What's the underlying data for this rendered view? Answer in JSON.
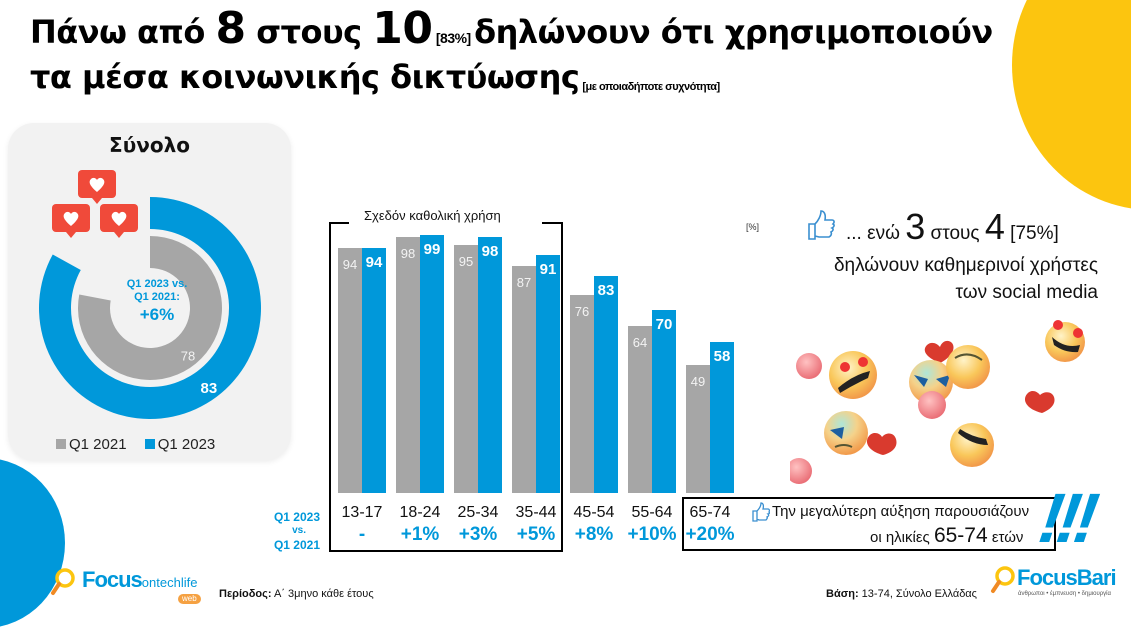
{
  "header": {
    "line1_part1": "Πάνω από ",
    "line1_big1": "8",
    "line1_part2": " στους ",
    "line1_big2": "10",
    "line1_pct": " [83%] ",
    "line1_part3": "δηλώνουν ότι χρησιμοποιούν",
    "line2_main": "τα μέσα κοινωνικής δικτύωσης",
    "line2_note": "[με οποιαδήποτε συχνότητα]"
  },
  "total_panel": {
    "title": "Σύνολο",
    "center_line1": "Q1 2023 vs.",
    "center_line2": "Q1 2021:",
    "center_change": "+6%",
    "legend": [
      {
        "label": "Q1 2021",
        "color": "#A6A6A6"
      },
      {
        "label": "Q1 2023",
        "color": "#0098DA"
      }
    ]
  },
  "bracket_label": "Σχεδόν καθολική χρήση",
  "unit_note": "[%]",
  "axis_side_label": [
    "Q1 2023",
    "vs.",
    "Q1 2021"
  ],
  "daily_note": {
    "part1": "... ενώ ",
    "big1": "3",
    "part2": " στους ",
    "big2": "4",
    "pct": " [75%]",
    "line2": "δηλώνουν καθημερινοί χρήστες",
    "line3": "των social media"
  },
  "highlight_note": {
    "line1": "Την μεγαλύτερη αύξηση παρουσιάζουν",
    "line2_pre": "οι ηλικίες ",
    "line2_big": "65-74",
    "line2_post": " ετών",
    "exclaim": "!!!"
  },
  "footer": {
    "period_label": "Περίοδος:",
    "period_value": " Α΄ 3μηνο κάθε έτους",
    "base_label": "Βάση:",
    "base_value": " 13-74, Σύνολο Ελλάδας",
    "logo_left_main": "Focus",
    "logo_left_sub": "ontechlife",
    "logo_left_tag": "web",
    "logo_right_main": "FocusBari",
    "logo_right_tag": "άνθρωποι • έμπνευση • δημιουργία"
  },
  "colors": {
    "q2021": "#A6A6A6",
    "q2023": "#0098DA",
    "yellow": "#FCC50F",
    "heart_red": "#F04A3A"
  },
  "chart_data": [
    {
      "type": "pie",
      "title": "Σύνολο",
      "subtype": "donut",
      "series": [
        {
          "name": "Q1 2021",
          "values": [
            78
          ]
        },
        {
          "name": "Q1 2023",
          "values": [
            83
          ]
        }
      ],
      "annotation": "Q1 2023 vs. Q1 2021: +6%",
      "max": 100
    },
    {
      "type": "bar",
      "title": "",
      "categories": [
        "13-17",
        "18-24",
        "25-34",
        "35-44",
        "45-54",
        "55-64",
        "65-74"
      ],
      "series": [
        {
          "name": "Q1 2021",
          "values": [
            94,
            98,
            95,
            87,
            76,
            64,
            49
          ]
        },
        {
          "name": "Q1 2023",
          "values": [
            94,
            99,
            98,
            91,
            83,
            70,
            58
          ]
        }
      ],
      "changes": [
        "-",
        "+1%",
        "+3%",
        "+5%",
        "+8%",
        "+10%",
        "+20%"
      ],
      "ylabel": "[%]",
      "ylim": [
        0,
        100
      ],
      "grid": false,
      "annotations": [
        "Σχεδόν καθολική χρήση"
      ]
    }
  ]
}
